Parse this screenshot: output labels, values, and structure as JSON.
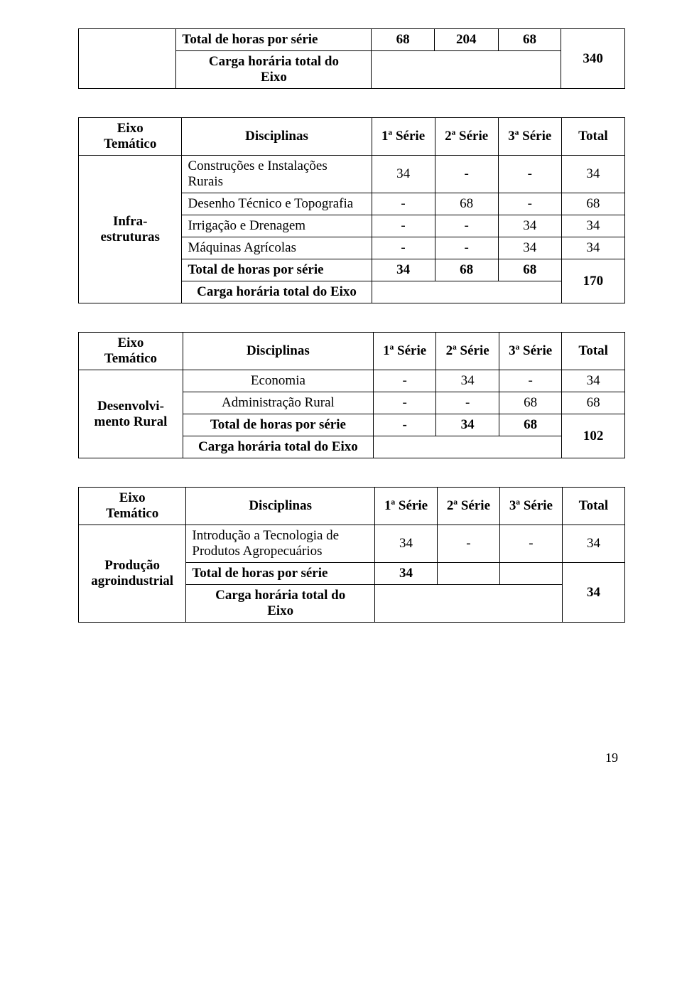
{
  "page_number": "19",
  "headers": {
    "eixo": "Eixo\nTemático",
    "disciplinas": "Disciplinas",
    "s1": "1ª Série",
    "s2": "2ª Série",
    "s3": "3ª Série",
    "total": "Total"
  },
  "t1": {
    "r1": {
      "label": "Total de horas por série",
      "c1": "68",
      "c2": "204",
      "c3": "68",
      "c4": ""
    },
    "r2": {
      "label": "Carga horária total do\nEixo",
      "c4": "340"
    }
  },
  "t2": {
    "left_label": "Infra-\nestruturas",
    "rows": [
      {
        "label": "Construções e Instalações\nRurais",
        "c1": "34",
        "c2": "-",
        "c3": "-",
        "c4": "34"
      },
      {
        "label": "Desenho Técnico e Topografia",
        "c1": "-",
        "c2": "68",
        "c3": "-",
        "c4": "68"
      },
      {
        "label": "Irrigação e Drenagem",
        "c1": "-",
        "c2": "-",
        "c3": "34",
        "c4": "34"
      },
      {
        "label": "Máquinas Agrícolas",
        "c1": "-",
        "c2": "-",
        "c3": "34",
        "c4": "34"
      }
    ],
    "total_row": {
      "label": "Total de horas por série",
      "c1": "34",
      "c2": "68",
      "c3": "68",
      "c4": ""
    },
    "carga_row": {
      "label": "Carga horária total do Eixo",
      "c4": "170"
    }
  },
  "t3": {
    "left_label": "Desenvolvi-\nmento Rural",
    "rows": [
      {
        "label": "Economia",
        "c1": "-",
        "c2": "34",
        "c3": "-",
        "c4": "34"
      },
      {
        "label": "Administração Rural",
        "c1": "-",
        "c2": "-",
        "c3": "68",
        "c4": "68"
      }
    ],
    "total_row": {
      "label": "Total de horas por série",
      "c1": "-",
      "c2": "34",
      "c3": "68",
      "c4": ""
    },
    "carga_row": {
      "label": "Carga horária total do Eixo",
      "c4": "102"
    }
  },
  "t4": {
    "left_label": "Produção\nagroindustrial",
    "rows": [
      {
        "label": "Introdução a Tecnologia de\nProdutos Agropecuários",
        "c1": "34",
        "c2": "-",
        "c3": "-",
        "c4": "34"
      }
    ],
    "total_row": {
      "label": "Total de horas por série",
      "c1": "34",
      "c2": "",
      "c3": "",
      "c4": ""
    },
    "carga_row": {
      "label": "Carga horária total do\nEixo",
      "c4": "34"
    }
  }
}
